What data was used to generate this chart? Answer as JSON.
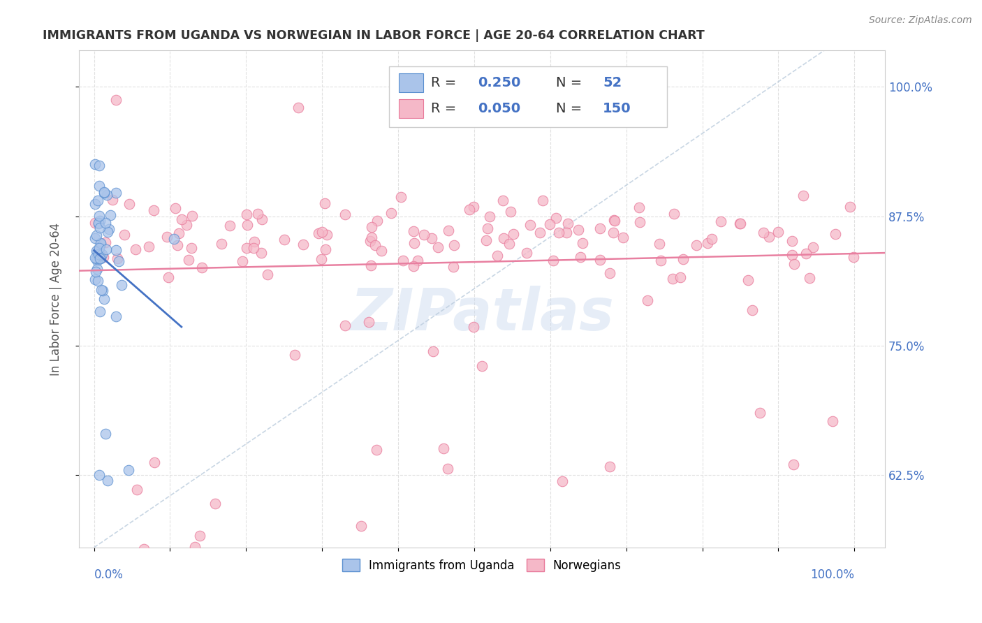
{
  "title": "IMMIGRANTS FROM UGANDA VS NORWEGIAN IN LABOR FORCE | AGE 20-64 CORRELATION CHART",
  "source": "Source: ZipAtlas.com",
  "ylabel": "In Labor Force | Age 20-64",
  "yticks": [
    0.625,
    0.75,
    0.875,
    1.0
  ],
  "ytick_labels": [
    "62.5%",
    "75.0%",
    "87.5%",
    "100.0%"
  ],
  "xlim": [
    -0.02,
    1.04
  ],
  "ylim": [
    0.555,
    1.035
  ],
  "blue_R": 0.25,
  "blue_N": 52,
  "pink_R": 0.05,
  "pink_N": 150,
  "blue_color": "#aac4ea",
  "pink_color": "#f5b8c8",
  "blue_edge_color": "#5a8fd0",
  "pink_edge_color": "#e8799a",
  "blue_line_color": "#4472c4",
  "pink_line_color": "#e87fa0",
  "legend_text_color": "#4472c4",
  "title_color": "#333333",
  "watermark": "ZIPatlas",
  "grid_color": "#e0e0e0",
  "ref_line_color": "#bbccdd"
}
